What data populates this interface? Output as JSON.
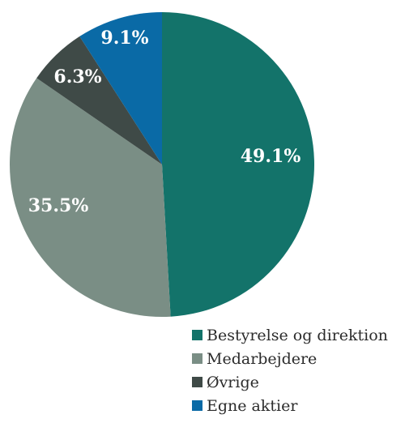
{
  "chart_data": {
    "type": "pie",
    "slices": [
      {
        "label": "Bestyrelse og direktion",
        "value": 49.1,
        "display": "49.1%",
        "color": "#13736a"
      },
      {
        "label": "Medarbejdere",
        "value": 35.5,
        "display": "35.5%",
        "color": "#7a8e85"
      },
      {
        "label": "Øvrige",
        "value": 6.3,
        "display": "6.3%",
        "color": "#3f4a47"
      },
      {
        "label": "Egne aktier",
        "value": 9.1,
        "display": "9.1%",
        "color": "#0a6aa6"
      }
    ],
    "start": "12 o'clock",
    "direction": "clockwise",
    "legend_position": "bottom-right"
  }
}
